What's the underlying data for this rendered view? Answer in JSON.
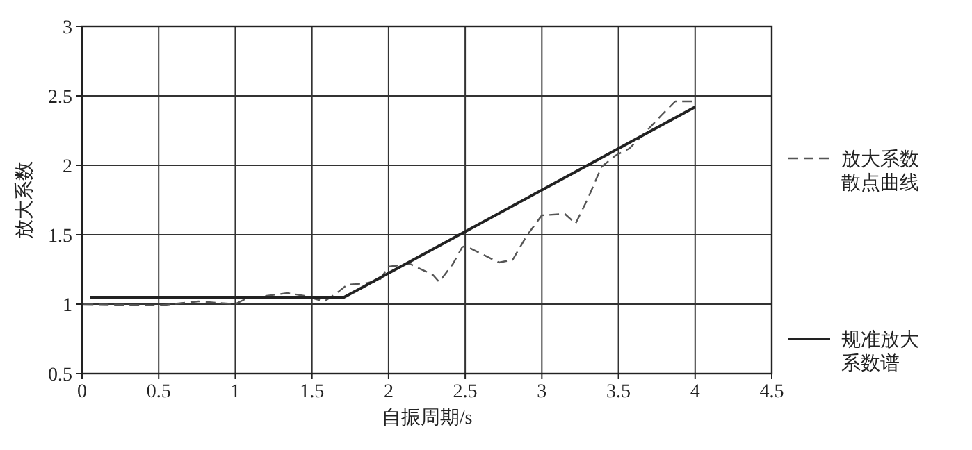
{
  "chart_data": {
    "type": "line",
    "xlabel": "自振周期/s",
    "ylabel": "放大系数",
    "xlim": [
      0,
      4.5
    ],
    "ylim": [
      0.5,
      3
    ],
    "xticks": [
      0,
      0.5,
      1,
      1.5,
      2,
      2.5,
      3,
      3.5,
      4,
      4.5
    ],
    "yticks": [
      0.5,
      1,
      1.5,
      2,
      2.5,
      3
    ],
    "grid": true,
    "legend": "right",
    "marker": "none",
    "series": [
      {
        "name": "放大系数散点曲线",
        "color": "#555555",
        "line_style": "dashed",
        "x": [
          0.01,
          0.5,
          0.76,
          1.0,
          1.07,
          1.34,
          1.45,
          1.58,
          1.65,
          1.73,
          1.85,
          1.94,
          2.0,
          2.14,
          2.29,
          2.33,
          2.42,
          2.48,
          2.5,
          2.72,
          2.81,
          2.9,
          3.0,
          3.15,
          3.22,
          3.3,
          3.39,
          3.48,
          3.57,
          3.66,
          3.78,
          3.87,
          4.0
        ],
        "values": [
          1.0,
          0.99,
          1.02,
          1.0,
          1.04,
          1.08,
          1.06,
          1.02,
          1.07,
          1.14,
          1.15,
          1.17,
          1.27,
          1.29,
          1.21,
          1.16,
          1.29,
          1.41,
          1.42,
          1.3,
          1.32,
          1.49,
          1.64,
          1.65,
          1.58,
          1.76,
          1.99,
          2.07,
          2.12,
          2.22,
          2.36,
          2.46,
          2.46
        ]
      },
      {
        "name": "规准放大系数谱",
        "color": "#222222",
        "line_style": "solid",
        "x": [
          0.05,
          1.71,
          4.0
        ],
        "values": [
          1.05,
          1.05,
          2.42
        ]
      }
    ]
  }
}
